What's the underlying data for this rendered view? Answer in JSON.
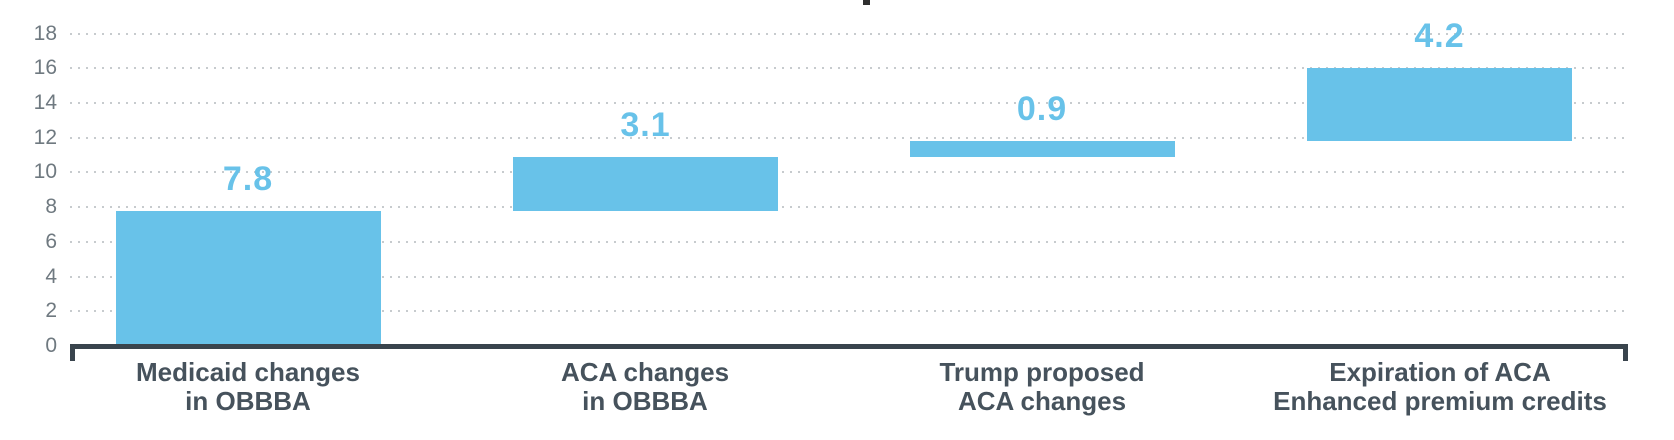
{
  "chart_data": {
    "type": "bar",
    "subtype": "waterfall",
    "title": "",
    "categories": [
      "Medicaid changes in OBBBA",
      "ACA changes in OBBBA",
      "Trump proposed ACA changes",
      "Expiration of ACA Enhanced premium credits"
    ],
    "category_labels": [
      "Medicaid changes\nin OBBBA",
      "ACA changes\nin OBBBA",
      "Trump proposed\nACA changes",
      "Expiration of ACA\nEnhanced premium credits"
    ],
    "values": [
      7.8,
      3.1,
      0.9,
      4.2
    ],
    "segment_starts": [
      0,
      7.8,
      10.9,
      11.8
    ],
    "segment_ends": [
      7.8,
      10.9,
      11.8,
      16.0
    ],
    "data_labels": [
      "7.8",
      "3.1",
      "0.9",
      "4.2"
    ],
    "total": 16.0,
    "xlabel": "",
    "ylabel": "",
    "ylim": [
      0,
      18
    ],
    "yticks": [
      0,
      2,
      4,
      6,
      8,
      10,
      12,
      14,
      16,
      18
    ],
    "grid": "dotted-horizontal",
    "legend": "none",
    "colors": {
      "bar": "#68C2E9",
      "data_label": "#68C2E9",
      "axis_line": "#39444D",
      "category_label": "#46525C",
      "tick_label": "#6F7980",
      "gridline": "#C7CBCE",
      "background": "#FFFFFF"
    }
  }
}
